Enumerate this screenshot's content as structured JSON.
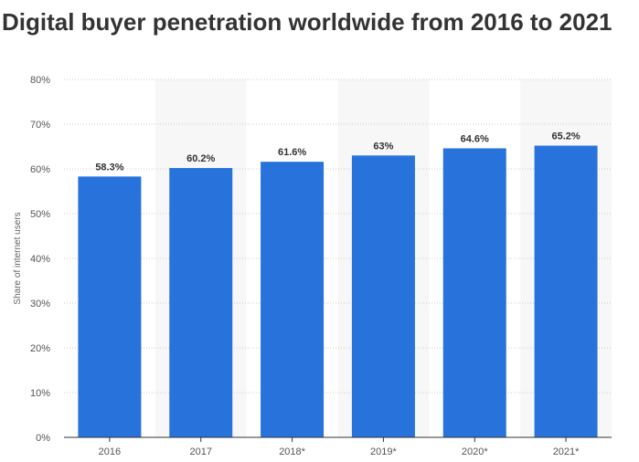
{
  "title": "Digital buyer penetration worldwide from 2016 to 2021",
  "colors": {
    "bar": "#2873DB",
    "band": "#F7F7F7",
    "grid": "#CCCCCC",
    "axis": "#333333"
  },
  "chart_data": {
    "type": "bar",
    "title": "Digital buyer penetration worldwide from 2016 to 2021",
    "xlabel": "",
    "ylabel": "Share of internet users",
    "categories": [
      "2016",
      "2017",
      "2018*",
      "2019*",
      "2020*",
      "2021*"
    ],
    "values": [
      58.3,
      60.2,
      61.6,
      63,
      64.6,
      65.2
    ],
    "data_labels": [
      "58.3%",
      "60.2%",
      "61.6%",
      "63%",
      "64.6%",
      "65.2%"
    ],
    "ylim": [
      0,
      80
    ],
    "yticks": [
      0,
      10,
      20,
      30,
      40,
      50,
      60,
      70,
      80
    ],
    "ytick_labels": [
      "0%",
      "10%",
      "20%",
      "30%",
      "40%",
      "50%",
      "60%",
      "70%",
      "80%"
    ],
    "grid": true,
    "legend": "none"
  }
}
